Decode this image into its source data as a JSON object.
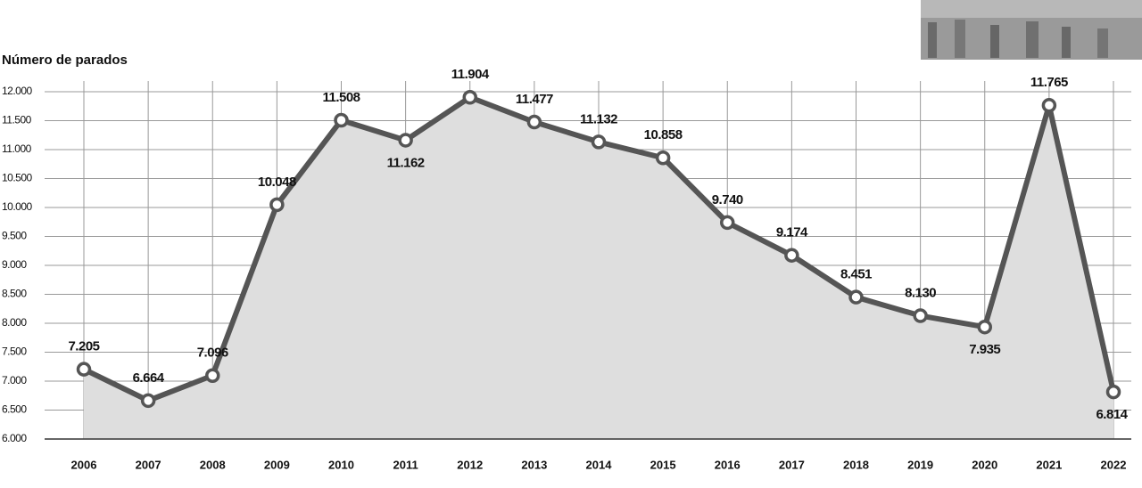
{
  "chart_data": {
    "type": "line",
    "y_label": "Número de parados",
    "categories": [
      "2006",
      "2007",
      "2008",
      "2009",
      "2010",
      "2011",
      "2012",
      "2013",
      "2014",
      "2015",
      "2016",
      "2017",
      "2018",
      "2019",
      "2020",
      "2021",
      "2022"
    ],
    "values": [
      7205,
      6664,
      7096,
      10048,
      11508,
      11162,
      11904,
      11477,
      11132,
      10858,
      9740,
      9174,
      8451,
      8130,
      7935,
      11765,
      6814
    ],
    "value_labels": [
      "7.205",
      "6.664",
      "7.096",
      "10.048",
      "11.508",
      "11.162",
      "11.904",
      "11.477",
      "11.132",
      "10.858",
      "9.740",
      "9.174",
      "8.451",
      "8.130",
      "7.935",
      "11.765",
      "6.814"
    ],
    "color": "#555555",
    "area_color": "#dedede",
    "ylim": [
      6000,
      12000
    ],
    "yticks": [
      {
        "value": 6000,
        "label": "6.000"
      },
      {
        "value": 6500,
        "label": "6.500"
      },
      {
        "value": 7000,
        "label": "7.000"
      },
      {
        "value": 7500,
        "label": "7.500"
      },
      {
        "value": 8000,
        "label": "8.000"
      },
      {
        "value": 8500,
        "label": "8.500"
      },
      {
        "value": 9000,
        "label": "9.000"
      },
      {
        "value": 9500,
        "label": "9.500"
      },
      {
        "value": 10000,
        "label": "10.000"
      },
      {
        "value": 10500,
        "label": "10.500"
      },
      {
        "value": 11000,
        "label": "11.000"
      },
      {
        "value": 11500,
        "label": "11.500"
      },
      {
        "value": 12000,
        "label": "12.000"
      }
    ],
    "grid": true
  }
}
